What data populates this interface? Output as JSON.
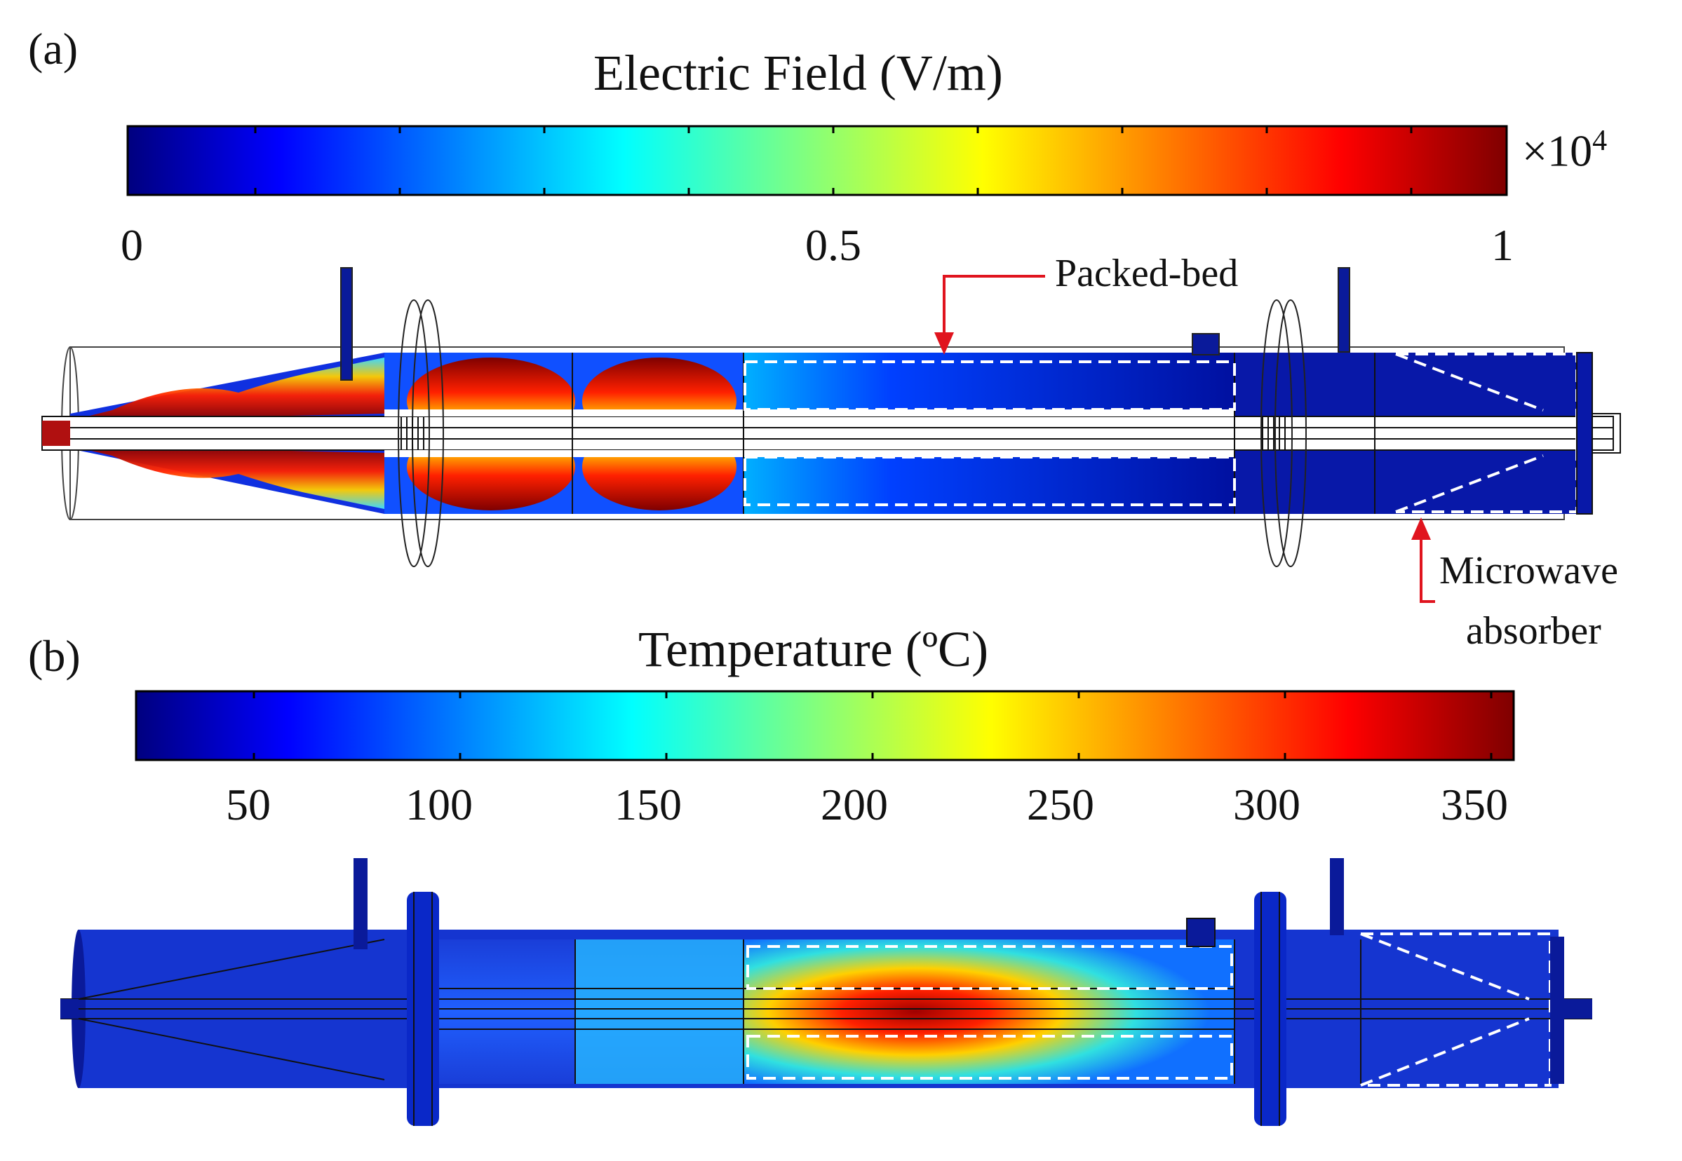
{
  "panel_a": {
    "label": "(a)",
    "colorbar": {
      "title": "Electric Field (V/m)",
      "multiplier": "×10",
      "multiplier_exponent": "4",
      "ticks": [
        "0",
        "0.5",
        "1"
      ],
      "range": [
        0,
        1
      ]
    },
    "annotations": {
      "packed_bed": "Packed-bed",
      "absorber_line1": "Microwave",
      "absorber_line2": "absorber"
    }
  },
  "panel_b": {
    "label": "(b)",
    "colorbar": {
      "title": "Temperature (ºC)",
      "ticks": [
        "50",
        "100",
        "150",
        "200",
        "250",
        "300",
        "350"
      ],
      "range": [
        20,
        360
      ]
    }
  },
  "colors": {
    "colormap": [
      "#00007f",
      "#0000ff",
      "#00ffff",
      "#ffff00",
      "#ff0000",
      "#7f0000"
    ],
    "annotation_arrow": "#e0141e",
    "background_field": "#0a1ea8"
  }
}
